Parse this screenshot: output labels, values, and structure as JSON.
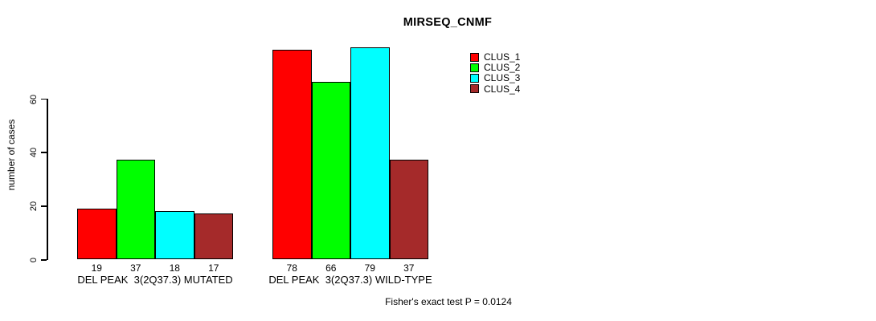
{
  "chart_data": {
    "type": "bar",
    "title": "MIRSEQ_CNMF",
    "xlabel": "",
    "ylabel": "number of cases",
    "ylim": [
      0,
      80
    ],
    "yticks": [
      0,
      20,
      40,
      60
    ],
    "grid": false,
    "legend_position": "top-right",
    "categories": [
      "DEL PEAK  3(2Q37.3) MUTATED",
      "DEL PEAK  3(2Q37.3) WILD-TYPE"
    ],
    "series": [
      {
        "name": "CLUS_1",
        "color": "#ff0000",
        "values": [
          19,
          78
        ]
      },
      {
        "name": "CLUS_2",
        "color": "#00ff00",
        "values": [
          37,
          66
        ]
      },
      {
        "name": "CLUS_3",
        "color": "#00ffff",
        "values": [
          18,
          79
        ]
      },
      {
        "name": "CLUS_4",
        "color": "#a52a2a",
        "values": [
          17,
          37
        ]
      }
    ],
    "bar_value_labels": [
      [
        "19",
        "37",
        "18",
        "17"
      ],
      [
        "78",
        "66",
        "79",
        "37"
      ]
    ],
    "annotation": "Fisher's exact test P = 0.0124",
    "colors": {
      "axis": "#000000",
      "text": "#000000",
      "background": "#ffffff"
    }
  }
}
